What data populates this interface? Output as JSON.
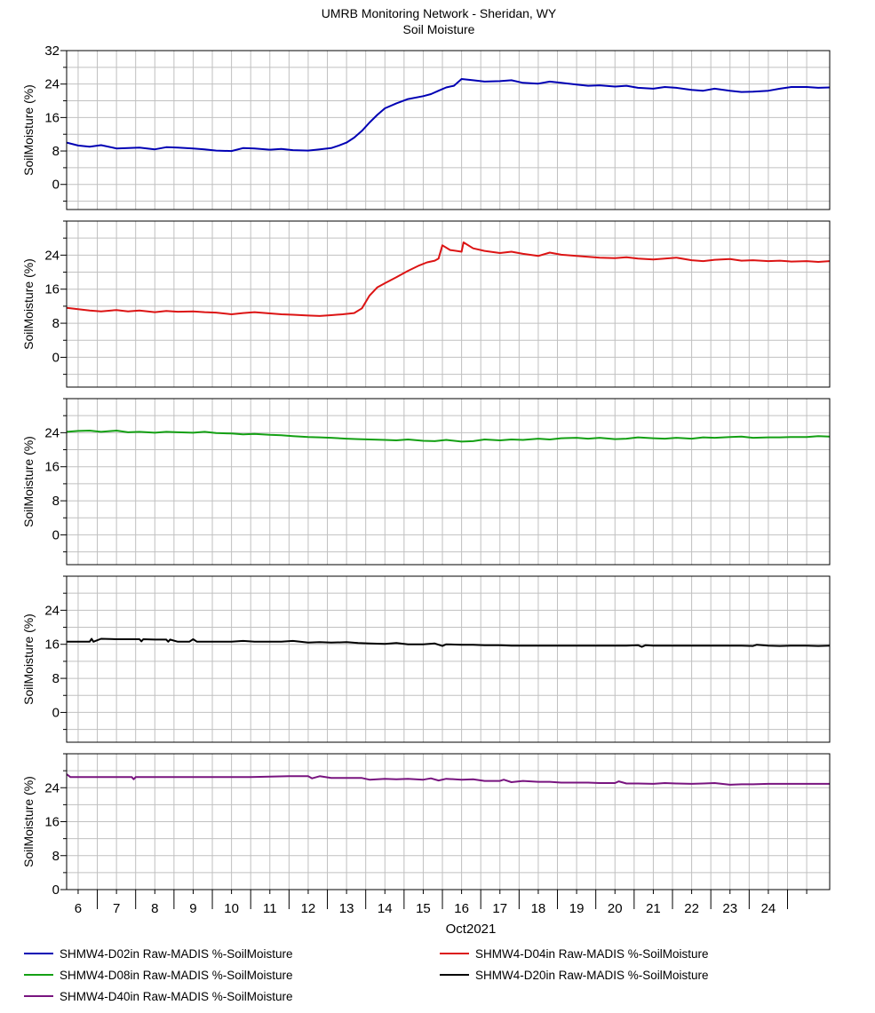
{
  "chart_data": {
    "type": "line",
    "title": "UMRB Monitoring Network - Sheridan, WY",
    "subtitle": "Soil Moisture",
    "xlabel": "Oct2021",
    "x_ticks": [
      "6",
      "7",
      "8",
      "9",
      "10",
      "11",
      "12",
      "13",
      "14",
      "15",
      "16",
      "17",
      "18",
      "19",
      "20",
      "21",
      "22",
      "23",
      "24"
    ],
    "x_range_days": [
      5.7,
      25.6
    ],
    "grid": true,
    "legend_position": "bottom",
    "panels": [
      {
        "ylabel": "SoilMoisture (%)",
        "ylim": [
          -6,
          32
        ],
        "yticks": [
          0,
          8,
          16,
          24,
          32
        ],
        "series": [
          {
            "name": "SHMW4-D02in Raw-MADIS %-SoilMoisture",
            "color": "#0000b4",
            "x": [
              5.7,
              6.0,
              6.3,
              6.6,
              7.0,
              7.3,
              7.6,
              8.0,
              8.3,
              8.6,
              9.0,
              9.3,
              9.6,
              10.0,
              10.3,
              10.6,
              11.0,
              11.3,
              11.6,
              12.0,
              12.3,
              12.6,
              12.8,
              13.0,
              13.2,
              13.4,
              13.6,
              13.8,
              14.0,
              14.3,
              14.6,
              15.0,
              15.2,
              15.4,
              15.6,
              15.8,
              16.0,
              16.3,
              16.6,
              17.0,
              17.3,
              17.6,
              18.0,
              18.3,
              18.6,
              19.0,
              19.3,
              19.6,
              20.0,
              20.3,
              20.6,
              21.0,
              21.3,
              21.6,
              22.0,
              22.3,
              22.6,
              23.0,
              23.3,
              23.6,
              24.0,
              24.3,
              24.6,
              25.0,
              25.3,
              25.6
            ],
            "y": [
              10.0,
              9.3,
              9.0,
              9.4,
              8.6,
              8.7,
              8.8,
              8.4,
              8.9,
              8.8,
              8.6,
              8.4,
              8.1,
              8.0,
              8.7,
              8.6,
              8.3,
              8.5,
              8.2,
              8.1,
              8.4,
              8.7,
              9.3,
              10.0,
              11.2,
              12.8,
              14.8,
              16.6,
              18.2,
              19.4,
              20.4,
              21.1,
              21.6,
              22.4,
              23.2,
              23.6,
              25.2,
              24.9,
              24.6,
              24.7,
              24.9,
              24.3,
              24.1,
              24.6,
              24.3,
              23.9,
              23.6,
              23.7,
              23.4,
              23.6,
              23.1,
              22.9,
              23.3,
              23.1,
              22.6,
              22.4,
              22.9,
              22.4,
              22.1,
              22.2,
              22.4,
              22.9,
              23.3,
              23.3,
              23.1,
              23.2
            ]
          }
        ]
      },
      {
        "ylabel": "SoilMoisture (%)",
        "ylim": [
          -7,
          32
        ],
        "yticks": [
          0,
          8,
          16,
          24
        ],
        "series": [
          {
            "name": "SHMW4-D04in Raw-MADIS %-SoilMoisture",
            "color": "#dc1414",
            "x": [
              5.7,
              6.0,
              6.3,
              6.6,
              7.0,
              7.3,
              7.6,
              8.0,
              8.3,
              8.6,
              9.0,
              9.3,
              9.6,
              10.0,
              10.3,
              10.6,
              11.0,
              11.3,
              11.6,
              12.0,
              12.3,
              12.6,
              12.9,
              13.2,
              13.4,
              13.6,
              13.8,
              14.0,
              14.3,
              14.6,
              14.9,
              15.1,
              15.3,
              15.4,
              15.5,
              15.7,
              16.0,
              16.05,
              16.3,
              16.6,
              17.0,
              17.3,
              17.6,
              18.0,
              18.3,
              18.6,
              19.0,
              19.3,
              19.6,
              20.0,
              20.3,
              20.6,
              21.0,
              21.3,
              21.6,
              22.0,
              22.3,
              22.6,
              23.0,
              23.3,
              23.6,
              24.0,
              24.3,
              24.6,
              25.0,
              25.3,
              25.6
            ],
            "y": [
              11.6,
              11.3,
              11.0,
              10.8,
              11.1,
              10.8,
              11.0,
              10.6,
              10.9,
              10.7,
              10.8,
              10.6,
              10.5,
              10.1,
              10.4,
              10.6,
              10.3,
              10.1,
              10.0,
              9.8,
              9.7,
              9.9,
              10.1,
              10.4,
              11.5,
              14.5,
              16.4,
              17.4,
              18.8,
              20.3,
              21.6,
              22.3,
              22.7,
              23.2,
              26.3,
              25.2,
              24.8,
              27.0,
              25.6,
              25.0,
              24.5,
              24.8,
              24.3,
              23.8,
              24.6,
              24.1,
              23.8,
              23.6,
              23.4,
              23.3,
              23.5,
              23.2,
              23.0,
              23.2,
              23.4,
              22.8,
              22.6,
              22.9,
              23.1,
              22.7,
              22.8,
              22.6,
              22.7,
              22.5,
              22.6,
              22.4,
              22.6
            ]
          }
        ]
      },
      {
        "ylabel": "SoilMoisture (%)",
        "ylim": [
          -7,
          32
        ],
        "yticks": [
          0,
          8,
          16,
          24
        ],
        "series": [
          {
            "name": "SHMW4-D08in Raw-MADIS %-SoilMoisture",
            "color": "#14a014",
            "x": [
              5.7,
              6.0,
              6.3,
              6.6,
              7.0,
              7.3,
              7.6,
              8.0,
              8.3,
              8.6,
              9.0,
              9.3,
              9.6,
              10.0,
              10.3,
              10.6,
              11.0,
              11.3,
              11.6,
              12.0,
              12.3,
              12.6,
              13.0,
              13.3,
              13.6,
              14.0,
              14.3,
              14.6,
              15.0,
              15.3,
              15.6,
              16.0,
              16.3,
              16.6,
              17.0,
              17.3,
              17.6,
              18.0,
              18.3,
              18.6,
              19.0,
              19.3,
              19.6,
              20.0,
              20.3,
              20.6,
              21.0,
              21.3,
              21.6,
              22.0,
              22.3,
              22.6,
              23.0,
              23.3,
              23.6,
              24.0,
              24.3,
              24.6,
              25.0,
              25.3,
              25.6
            ],
            "y": [
              24.2,
              24.4,
              24.5,
              24.2,
              24.5,
              24.1,
              24.2,
              24.0,
              24.2,
              24.1,
              24.0,
              24.2,
              23.9,
              23.8,
              23.6,
              23.7,
              23.5,
              23.4,
              23.2,
              23.0,
              22.9,
              22.8,
              22.6,
              22.5,
              22.4,
              22.3,
              22.2,
              22.4,
              22.1,
              22.0,
              22.3,
              21.9,
              22.0,
              22.4,
              22.2,
              22.4,
              22.3,
              22.6,
              22.4,
              22.7,
              22.8,
              22.6,
              22.8,
              22.5,
              22.6,
              22.9,
              22.7,
              22.6,
              22.8,
              22.6,
              22.9,
              22.8,
              23.0,
              23.1,
              22.8,
              22.9,
              22.9,
              23.0,
              23.0,
              23.2,
              23.1
            ]
          }
        ]
      },
      {
        "ylabel": "SoilMoisture (%)",
        "ylim": [
          -7,
          32
        ],
        "yticks": [
          0,
          8,
          16,
          24
        ],
        "series": [
          {
            "name": "SHMW4-D20in Raw-MADIS %-SoilMoisture",
            "color": "#000000",
            "x": [
              5.7,
              6.0,
              6.3,
              6.35,
              6.4,
              6.6,
              7.0,
              7.3,
              7.6,
              7.65,
              7.7,
              8.0,
              8.3,
              8.35,
              8.4,
              8.6,
              8.9,
              9.0,
              9.1,
              9.3,
              9.6,
              10.0,
              10.3,
              10.6,
              11.0,
              11.3,
              11.6,
              12.0,
              12.3,
              12.6,
              13.0,
              13.3,
              13.6,
              14.0,
              14.3,
              14.6,
              15.0,
              15.3,
              15.5,
              15.6,
              16.0,
              16.3,
              16.6,
              17.0,
              17.3,
              17.6,
              18.0,
              18.3,
              18.6,
              19.0,
              19.3,
              19.6,
              20.0,
              20.3,
              20.6,
              20.7,
              20.8,
              21.0,
              21.3,
              21.6,
              22.0,
              22.3,
              22.6,
              23.0,
              23.3,
              23.6,
              23.7,
              24.0,
              24.3,
              24.6,
              25.0,
              25.3,
              25.6
            ],
            "y": [
              16.6,
              16.6,
              16.6,
              17.3,
              16.6,
              17.3,
              17.2,
              17.2,
              17.2,
              16.7,
              17.2,
              17.1,
              17.1,
              16.6,
              17.1,
              16.6,
              16.6,
              17.2,
              16.6,
              16.6,
              16.6,
              16.6,
              16.8,
              16.6,
              16.6,
              16.6,
              16.8,
              16.4,
              16.5,
              16.4,
              16.5,
              16.3,
              16.2,
              16.1,
              16.3,
              16.0,
              16.0,
              16.2,
              15.6,
              16.0,
              15.9,
              15.9,
              15.8,
              15.8,
              15.7,
              15.7,
              15.7,
              15.7,
              15.7,
              15.7,
              15.7,
              15.7,
              15.7,
              15.7,
              15.8,
              15.4,
              15.8,
              15.7,
              15.7,
              15.7,
              15.7,
              15.7,
              15.7,
              15.7,
              15.7,
              15.6,
              15.9,
              15.7,
              15.6,
              15.7,
              15.7,
              15.6,
              15.7
            ]
          }
        ]
      },
      {
        "ylabel": "SoilMoisture (%)",
        "ylim": [
          0,
          32
        ],
        "yticks": [
          0,
          8,
          16,
          24
        ],
        "series": [
          {
            "name": "SHMW4-D40in Raw-MADIS %-SoilMoisture",
            "color": "#78147f",
            "x": [
              5.7,
              5.8,
              6.0,
              6.5,
              7.0,
              7.4,
              7.45,
              7.5,
              8.0,
              8.5,
              9.0,
              9.5,
              10.0,
              10.5,
              11.0,
              11.5,
              12.0,
              12.1,
              12.3,
              12.6,
              13.0,
              13.4,
              13.6,
              14.0,
              14.3,
              14.6,
              15.0,
              15.2,
              15.4,
              15.6,
              16.0,
              16.3,
              16.6,
              17.0,
              17.1,
              17.3,
              17.6,
              18.0,
              18.3,
              18.6,
              19.0,
              19.3,
              19.6,
              20.0,
              20.1,
              20.3,
              20.6,
              21.0,
              21.3,
              21.6,
              22.0,
              22.3,
              22.6,
              23.0,
              23.3,
              23.6,
              24.0,
              24.3,
              24.6,
              25.0,
              25.3,
              25.6
            ],
            "y": [
              27.2,
              26.5,
              26.5,
              26.5,
              26.5,
              26.5,
              26.0,
              26.5,
              26.5,
              26.5,
              26.5,
              26.5,
              26.5,
              26.5,
              26.6,
              26.7,
              26.7,
              26.2,
              26.7,
              26.3,
              26.3,
              26.3,
              25.9,
              26.1,
              26.0,
              26.1,
              25.9,
              26.2,
              25.7,
              26.1,
              25.9,
              26.0,
              25.6,
              25.6,
              25.9,
              25.3,
              25.6,
              25.4,
              25.4,
              25.2,
              25.2,
              25.2,
              25.1,
              25.1,
              25.5,
              25.0,
              25.0,
              24.9,
              25.1,
              25.0,
              24.9,
              25.0,
              25.1,
              24.7,
              24.8,
              24.8,
              24.9,
              24.9,
              24.9,
              24.9,
              24.9,
              24.9
            ]
          }
        ]
      }
    ]
  }
}
